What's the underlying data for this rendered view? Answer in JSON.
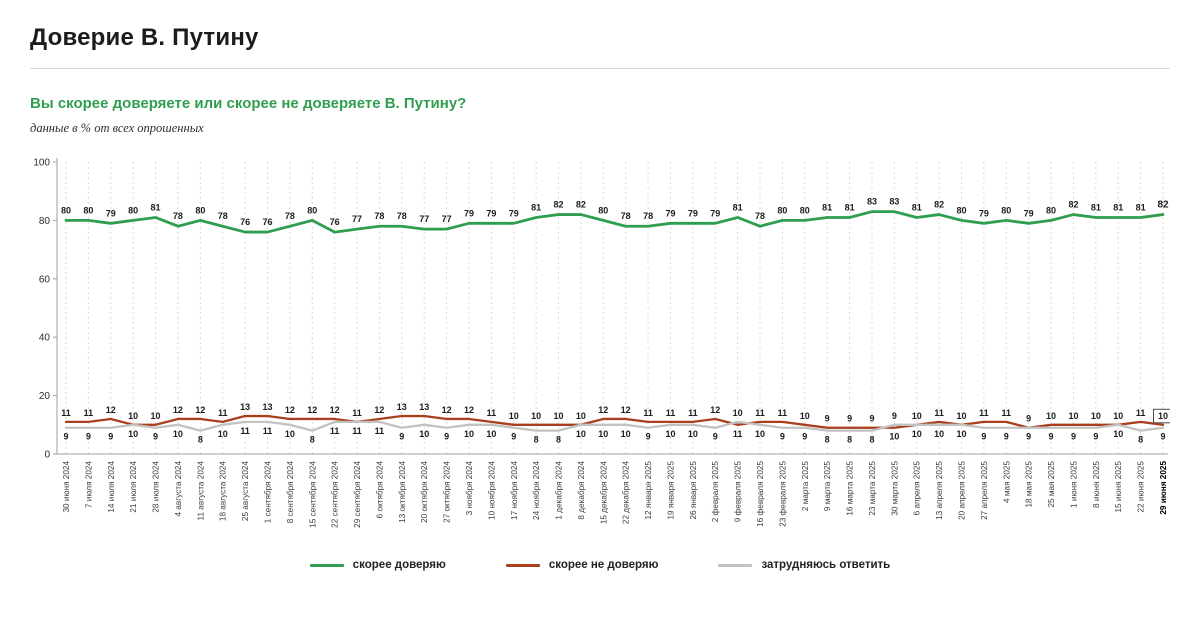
{
  "header": {
    "title": "Доверие В. Путину",
    "question": "Вы скорее доверяете или скорее не доверяете В. Путину?",
    "note": "данные в % от всех опрошенных",
    "accent_color": "#2f9e4f"
  },
  "chart_data": {
    "type": "line",
    "title": "Доверие В. Путину",
    "subtitle": "Вы скорее доверяете или скорее не доверяете В. Путину?",
    "units": "% от всех опрошенных",
    "xlabel": "",
    "ylabel": "",
    "ylim": [
      0,
      100
    ],
    "yticks": [
      0,
      20,
      40,
      60,
      80,
      100
    ],
    "grid": "vertical-dashed",
    "legend_position": "bottom",
    "highlight_last_point": true,
    "categories": [
      "30 июня 2024",
      "7 июля 2024",
      "14 июля 2024",
      "21 июля 2024",
      "28 июля 2024",
      "4 августа 2024",
      "11 августа 2024",
      "18 августа 2024",
      "25 августа 2024",
      "1 сентября 2024",
      "8 сентября 2024",
      "15 сентября 2024",
      "22 сентября 2024",
      "29 сентября 2024",
      "6 октября 2024",
      "13 октября 2024",
      "20 октября 2024",
      "27 октября 2024",
      "3 ноября 2024",
      "10 ноября 2024",
      "17 ноября 2024",
      "24 ноября 2024",
      "1 декабря 2024",
      "8 декабря 2024",
      "15 декабря 2024",
      "22 декабря 2024",
      "12 января 2025",
      "19 января 2025",
      "26 января 2025",
      "2 февраля 2025",
      "9 февраля 2025",
      "16 февраля 2025",
      "23 февраля 2025",
      "2 марта 2025",
      "9 марта 2025",
      "16 марта 2025",
      "23 марта 2025",
      "30 марта 2025",
      "6 апреля 2025",
      "13 апреля 2025",
      "20 апреля 2025",
      "27 апреля 2025",
      "4 мая 2025",
      "18 мая 2025",
      "25 мая 2025",
      "1 июня 2025",
      "8 июня 2025",
      "15 июня 2025",
      "22 июня 2025",
      "29 июня 2025"
    ],
    "series": [
      {
        "name": "скорее доверяю",
        "color": "#2f9e4f",
        "values": [
          80,
          80,
          79,
          80,
          81,
          78,
          80,
          78,
          76,
          76,
          78,
          80,
          76,
          77,
          78,
          78,
          77,
          77,
          79,
          79,
          79,
          81,
          82,
          82,
          80,
          78,
          78,
          79,
          79,
          79,
          81,
          78,
          80,
          80,
          81,
          81,
          83,
          83,
          81,
          82,
          80,
          79,
          80,
          79,
          80,
          82,
          81,
          81,
          81,
          82
        ]
      },
      {
        "name": "скорее не доверяю",
        "color": "#a8401d",
        "values": [
          11,
          11,
          12,
          10,
          10,
          12,
          12,
          11,
          13,
          13,
          12,
          12,
          12,
          11,
          12,
          13,
          13,
          12,
          12,
          11,
          10,
          10,
          10,
          10,
          12,
          12,
          11,
          11,
          11,
          12,
          10,
          11,
          11,
          10,
          9,
          9,
          9,
          9,
          10,
          11,
          10,
          11,
          11,
          9,
          10,
          10,
          10,
          10,
          11,
          10
        ]
      },
      {
        "name": "затрудняюсь ответить",
        "color": "#c2c2c2",
        "values": [
          9,
          9,
          9,
          10,
          9,
          10,
          8,
          10,
          11,
          11,
          10,
          8,
          11,
          11,
          11,
          9,
          10,
          9,
          10,
          10,
          9,
          8,
          8,
          10,
          10,
          10,
          9,
          10,
          10,
          9,
          11,
          10,
          9,
          9,
          8,
          8,
          8,
          10,
          10,
          10,
          10,
          9,
          9,
          9,
          9,
          9,
          9,
          10,
          8,
          9
        ]
      }
    ]
  }
}
